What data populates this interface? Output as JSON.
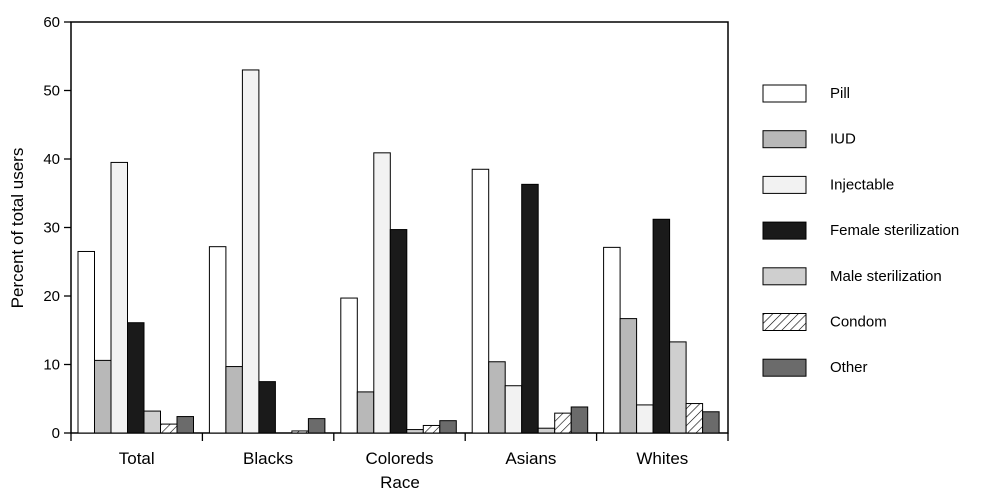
{
  "chart_data": {
    "type": "bar",
    "title": "",
    "xlabel": "Race",
    "ylabel": "Percent of total users",
    "ylim": [
      0,
      60
    ],
    "yticks": [
      0,
      10,
      20,
      30,
      40,
      50,
      60
    ],
    "grid": false,
    "legend_position": "right",
    "categories": [
      "Total",
      "Blacks",
      "Coloreds",
      "Asians",
      "Whites"
    ],
    "series": [
      {
        "name": "Pill",
        "fill": "#ffffff",
        "pattern": "none",
        "values": [
          26.5,
          27.2,
          19.7,
          38.5,
          27.1
        ]
      },
      {
        "name": "IUD",
        "fill": "#b8b8b8",
        "pattern": "none",
        "values": [
          10.6,
          9.7,
          6.0,
          10.4,
          16.7
        ]
      },
      {
        "name": "Injectable",
        "fill": "#f2f2f2",
        "pattern": "none",
        "values": [
          39.5,
          53.0,
          40.9,
          6.9,
          4.1
        ]
      },
      {
        "name": "Female sterilization",
        "fill": "#1a1a1a",
        "pattern": "none",
        "values": [
          16.1,
          7.5,
          29.7,
          36.3,
          31.2
        ]
      },
      {
        "name": "Male sterilization",
        "fill": "#cfcfcf",
        "pattern": "none",
        "values": [
          3.2,
          0.0,
          0.5,
          0.7,
          13.3
        ]
      },
      {
        "name": "Condom",
        "fill": "#ffffff",
        "pattern": "hatch",
        "values": [
          1.3,
          0.3,
          1.1,
          2.9,
          4.3
        ]
      },
      {
        "name": "Other",
        "fill": "#6b6b6b",
        "pattern": "none",
        "values": [
          2.4,
          2.1,
          1.8,
          3.8,
          3.1
        ]
      }
    ]
  }
}
